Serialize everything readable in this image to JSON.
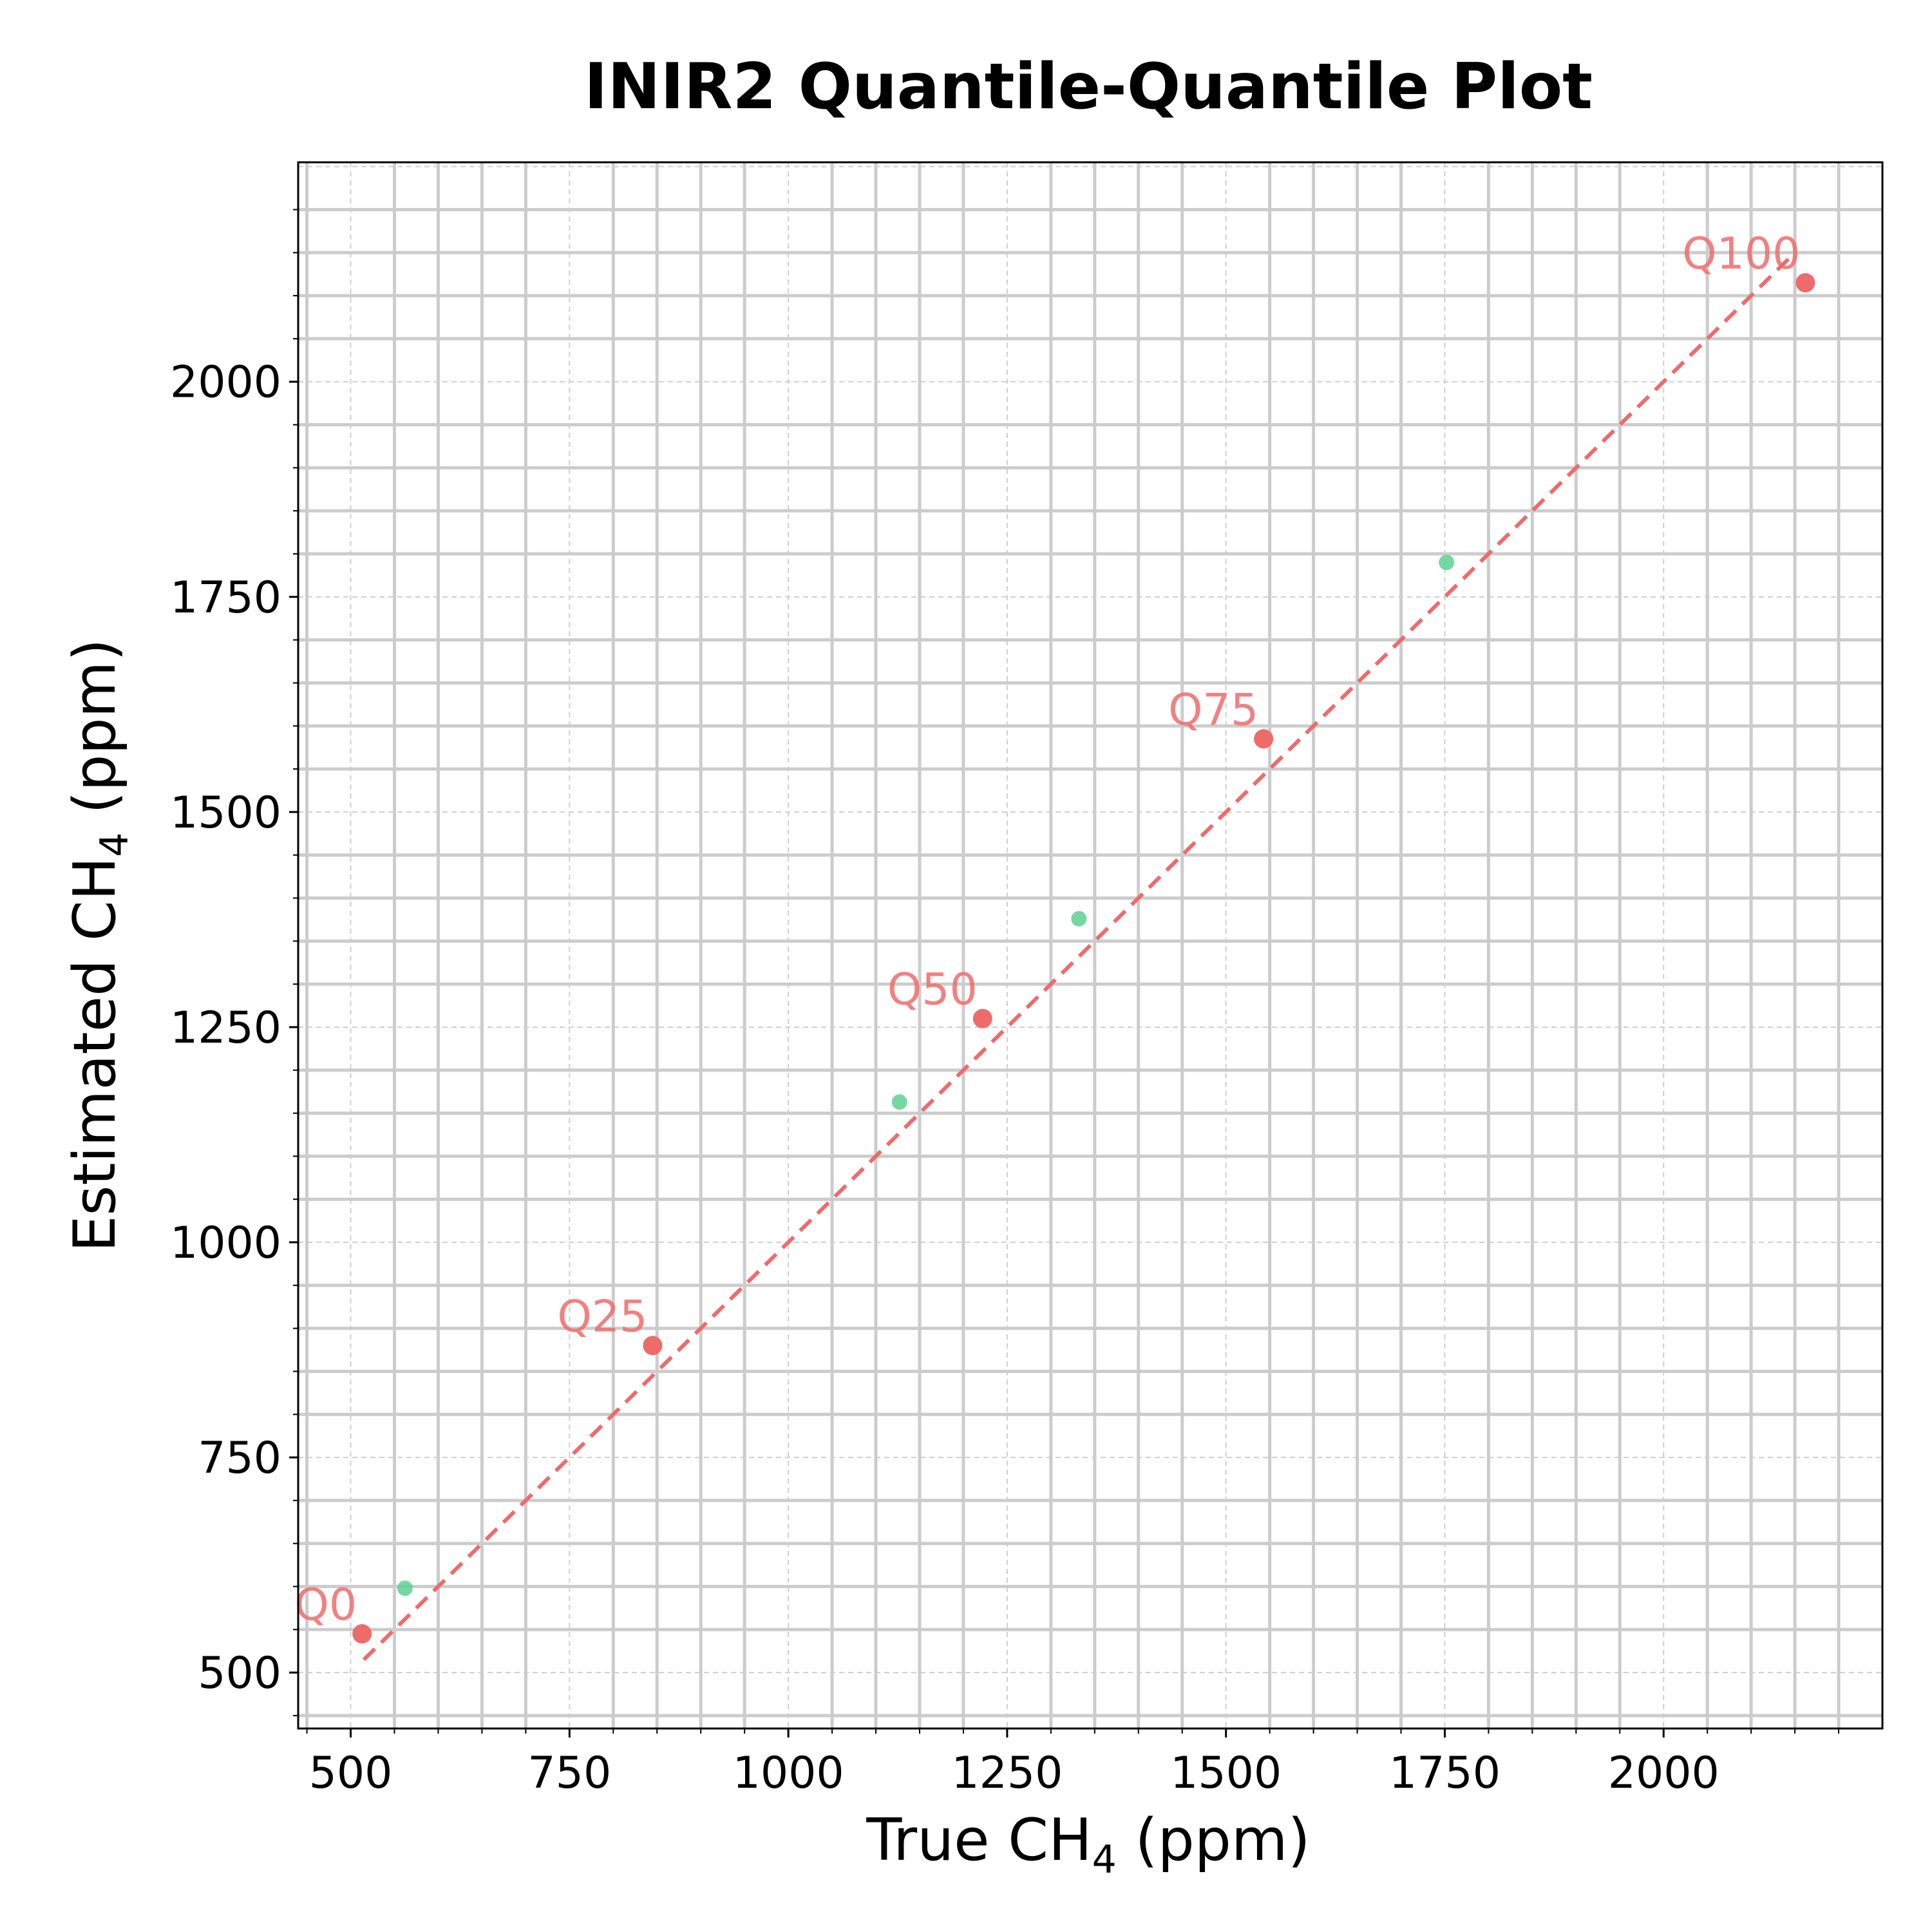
{
  "chart_data": {
    "type": "scatter",
    "title": "INIR2 Quantile-Quantile Plot",
    "xlabel": {
      "base": "True CH",
      "sub": "4",
      "suffix": " (ppm)"
    },
    "ylabel": {
      "base": "Estimated CH",
      "sub": "4",
      "suffix": " (ppm)"
    },
    "xlim": [
      440,
      2250
    ],
    "ylim": [
      435,
      2255
    ],
    "x_ticks": [
      500,
      750,
      1000,
      1250,
      1500,
      1750,
      2000
    ],
    "y_ticks": [
      500,
      750,
      1000,
      1250,
      1500,
      1750,
      2000
    ],
    "grid": true,
    "reference_line": {
      "style": "dashed",
      "x": [
        515,
        2150
      ],
      "y": [
        515,
        2150
      ],
      "color": "#ee6b6b"
    },
    "series": [
      {
        "role": "labeled-quantiles",
        "color": "#ee6b6b",
        "points": [
          {
            "label": "Q0",
            "x": 513,
            "y": 545
          },
          {
            "label": "Q25",
            "x": 845,
            "y": 880
          },
          {
            "label": "Q50",
            "x": 1222,
            "y": 1260
          },
          {
            "label": "Q75",
            "x": 1543,
            "y": 1585
          },
          {
            "label": "Q100",
            "x": 2162,
            "y": 2115
          }
        ]
      },
      {
        "role": "intermediate-quantiles",
        "color": "#5fd08f",
        "points": [
          {
            "x": 562,
            "y": 598
          },
          {
            "x": 1127,
            "y": 1163
          },
          {
            "x": 1332,
            "y": 1376
          },
          {
            "x": 1752,
            "y": 1790
          }
        ]
      }
    ]
  }
}
